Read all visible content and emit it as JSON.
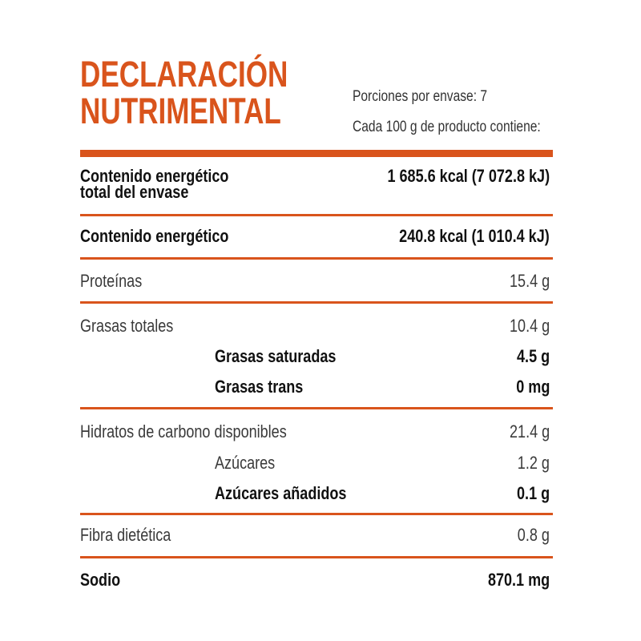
{
  "header": {
    "title_line1": "DECLARACIÓN",
    "title_line2": "NUTRIMENTAL",
    "servings_per_package": "Porciones por envase: 7",
    "per_100g": "Cada 100 g de producto contiene:"
  },
  "rows": {
    "energy_total_label_1": "Contenido energético",
    "energy_total_label_2": "total del envase",
    "energy_total_value": "1 685.6 kcal (7 072.8 kJ)",
    "energy_label": "Contenido energético",
    "energy_value": "240.8 kcal (1 010.4 kJ)",
    "protein_label": "Proteínas",
    "protein_value": "15.4 g",
    "fat_label": "Grasas totales",
    "fat_value": "10.4 g",
    "sat_fat_label": "Grasas saturadas",
    "sat_fat_value": "4.5 g",
    "trans_fat_label": "Grasas trans",
    "trans_fat_value": "0 mg",
    "carbs_label": "Hidratos de carbono disponibles",
    "carbs_value": "21.4 g",
    "sugars_label": "Azúcares",
    "sugars_value": "1.2 g",
    "added_sugars_label": "Azúcares añadidos",
    "added_sugars_value": "0.1 g",
    "fiber_label": "Fibra dietética",
    "fiber_value": "0.8 g",
    "sodium_label": "Sodio",
    "sodium_value": "870.1 mg"
  },
  "colors": {
    "accent": "#d9541c",
    "text": "#1a1a1a"
  }
}
